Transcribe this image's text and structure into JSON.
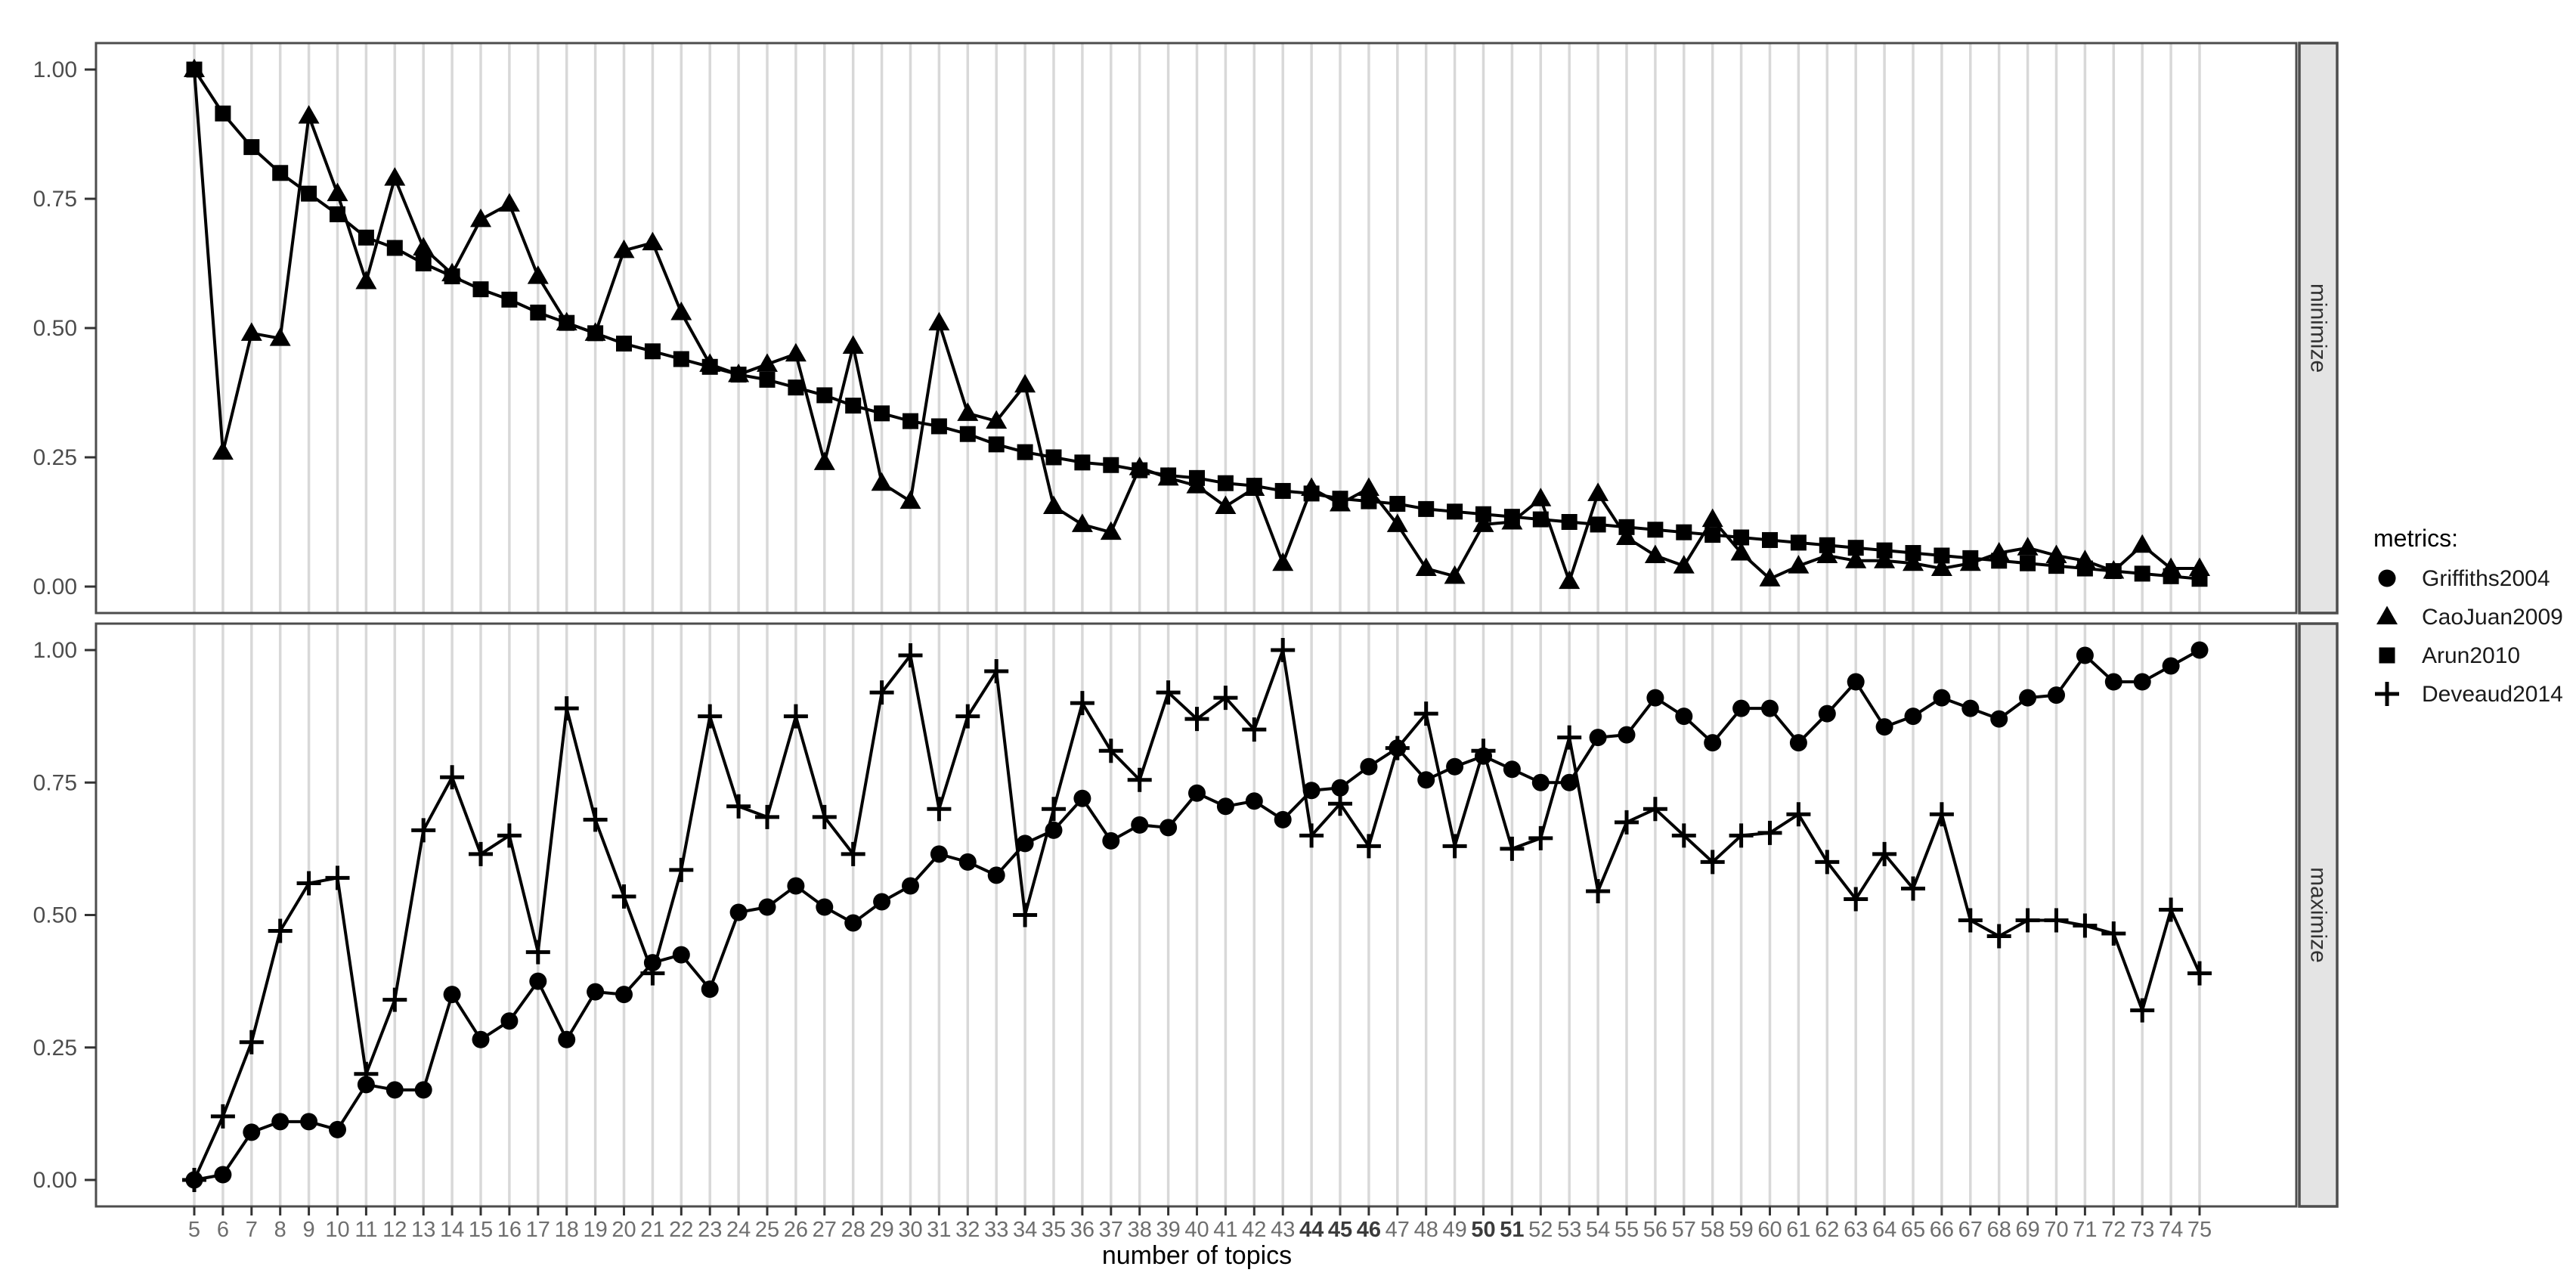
{
  "chart_data": {
    "type": "line",
    "title": "",
    "xlabel": "number of topics",
    "legend_title": "metrics:",
    "x": [
      5,
      6,
      7,
      8,
      9,
      10,
      11,
      12,
      13,
      14,
      15,
      16,
      17,
      18,
      19,
      20,
      21,
      22,
      23,
      24,
      25,
      26,
      27,
      28,
      29,
      30,
      31,
      32,
      33,
      34,
      35,
      36,
      37,
      38,
      39,
      40,
      41,
      42,
      43,
      44,
      45,
      46,
      47,
      48,
      49,
      50,
      51,
      52,
      53,
      54,
      55,
      56,
      57,
      58,
      59,
      60,
      61,
      62,
      63,
      64,
      65,
      66,
      67,
      68,
      69,
      70,
      71,
      72,
      73,
      74,
      75
    ],
    "x_bold_ticks": [
      44,
      45,
      46,
      50,
      51
    ],
    "y_ticks": [
      "0.00",
      "0.25",
      "0.50",
      "0.75",
      "1.00"
    ],
    "y_tick_values": [
      0,
      0.25,
      0.5,
      0.75,
      1
    ],
    "ylim": [
      0,
      1
    ],
    "grid": "vertical-only",
    "legend_position": "right",
    "panels": [
      {
        "name": "minimize",
        "series": [
          {
            "name": "CaoJuan2009",
            "marker": "triangle",
            "values": [
              1.0,
              0.26,
              0.49,
              0.48,
              0.91,
              0.76,
              0.59,
              0.79,
              0.655,
              0.605,
              0.71,
              0.74,
              0.6,
              0.51,
              0.49,
              0.65,
              0.665,
              0.53,
              0.43,
              0.41,
              0.43,
              0.45,
              0.24,
              0.465,
              0.2,
              0.165,
              0.51,
              0.335,
              0.32,
              0.39,
              0.155,
              0.12,
              0.105,
              0.23,
              0.21,
              0.195,
              0.155,
              0.19,
              0.045,
              0.19,
              0.16,
              0.19,
              0.12,
              0.035,
              0.02,
              0.12,
              0.125,
              0.17,
              0.01,
              0.18,
              0.095,
              0.06,
              0.04,
              0.13,
              0.065,
              0.015,
              0.04,
              0.06,
              0.05,
              0.05,
              0.045,
              0.035,
              0.045,
              0.065,
              0.075,
              0.06,
              0.05,
              0.03,
              0.08,
              0.035,
              0.035
            ]
          },
          {
            "name": "Arun2010",
            "marker": "square",
            "values": [
              1.0,
              0.915,
              0.85,
              0.8,
              0.76,
              0.72,
              0.675,
              0.655,
              0.625,
              0.6,
              0.575,
              0.555,
              0.53,
              0.51,
              0.49,
              0.47,
              0.455,
              0.44,
              0.425,
              0.41,
              0.4,
              0.385,
              0.37,
              0.35,
              0.335,
              0.32,
              0.31,
              0.295,
              0.275,
              0.26,
              0.25,
              0.24,
              0.235,
              0.225,
              0.215,
              0.21,
              0.2,
              0.195,
              0.185,
              0.18,
              0.17,
              0.165,
              0.16,
              0.15,
              0.145,
              0.14,
              0.135,
              0.13,
              0.125,
              0.12,
              0.115,
              0.11,
              0.105,
              0.1,
              0.095,
              0.09,
              0.085,
              0.08,
              0.075,
              0.07,
              0.065,
              0.06,
              0.055,
              0.05,
              0.045,
              0.04,
              0.035,
              0.03,
              0.025,
              0.02,
              0.015
            ]
          }
        ]
      },
      {
        "name": "maximize",
        "series": [
          {
            "name": "Griffiths2004",
            "marker": "circle",
            "values": [
              0.0,
              0.01,
              0.09,
              0.11,
              0.11,
              0.095,
              0.18,
              0.17,
              0.17,
              0.35,
              0.265,
              0.3,
              0.375,
              0.265,
              0.355,
              0.35,
              0.41,
              0.425,
              0.36,
              0.505,
              0.515,
              0.555,
              0.515,
              0.485,
              0.525,
              0.555,
              0.615,
              0.6,
              0.575,
              0.635,
              0.66,
              0.72,
              0.64,
              0.67,
              0.665,
              0.73,
              0.705,
              0.715,
              0.68,
              0.735,
              0.74,
              0.78,
              0.815,
              0.755,
              0.78,
              0.8,
              0.775,
              0.75,
              0.75,
              0.835,
              0.84,
              0.91,
              0.875,
              0.825,
              0.89,
              0.89,
              0.825,
              0.88,
              0.94,
              0.855,
              0.875,
              0.91,
              0.89,
              0.87,
              0.91,
              0.915,
              0.99,
              0.94,
              0.94,
              0.97,
              1.0
            ]
          },
          {
            "name": "Deveaud2014",
            "marker": "plus",
            "values": [
              0.0,
              0.12,
              0.26,
              0.47,
              0.56,
              0.57,
              0.2,
              0.34,
              0.66,
              0.76,
              0.615,
              0.65,
              0.43,
              0.89,
              0.68,
              0.535,
              0.39,
              0.585,
              0.875,
              0.705,
              0.685,
              0.875,
              0.685,
              0.615,
              0.92,
              0.99,
              0.7,
              0.875,
              0.96,
              0.5,
              0.7,
              0.9,
              0.81,
              0.755,
              0.92,
              0.87,
              0.91,
              0.85,
              1.0,
              0.65,
              0.71,
              0.63,
              0.815,
              0.88,
              0.63,
              0.81,
              0.625,
              0.645,
              0.835,
              0.545,
              0.675,
              0.7,
              0.65,
              0.6,
              0.65,
              0.655,
              0.69,
              0.6,
              0.53,
              0.615,
              0.55,
              0.69,
              0.49,
              0.46,
              0.49,
              0.49,
              0.48,
              0.465,
              0.32,
              0.51,
              0.39
            ]
          }
        ]
      }
    ],
    "legend": [
      {
        "label": "Griffiths2004",
        "marker": "circle"
      },
      {
        "label": "CaoJuan2009",
        "marker": "triangle"
      },
      {
        "label": "Arun2010",
        "marker": "square"
      },
      {
        "label": "Deveaud2014",
        "marker": "plus"
      }
    ],
    "colors": {
      "series": "#000000",
      "grid": "#d8d8d8",
      "panel_border": "#4d4d4d",
      "axis_text": "#6e6e6e",
      "axis_text_bold": "#3c3c3c",
      "y_axis_text": "#4d4d4d",
      "tick": "#333333",
      "strip_bg": "#e4e4e4",
      "strip_text": "#333333",
      "caption_text": "#000000",
      "background": "#ffffff"
    }
  }
}
